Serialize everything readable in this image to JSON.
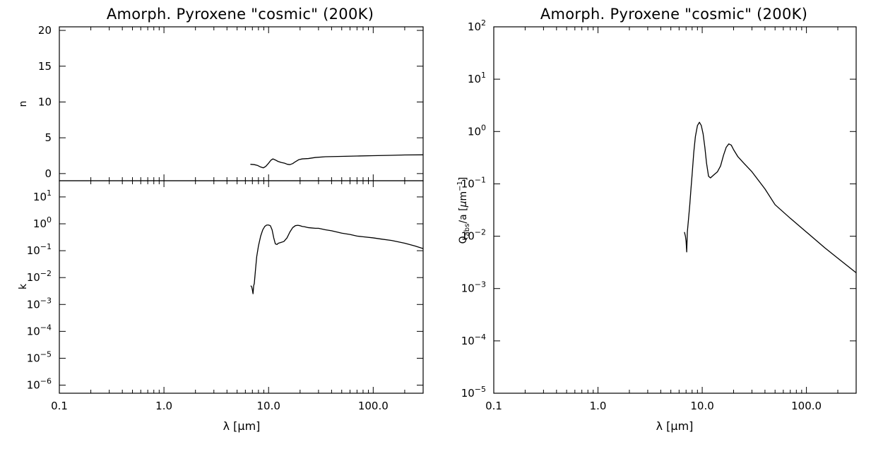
{
  "chart_data": [
    {
      "id": "n",
      "type": "line",
      "title": "Amorph. Pyroxene \"cosmic\" (200K)",
      "xlabel": "",
      "ylabel": "n",
      "xscale": "log",
      "yscale": "linear",
      "xlim": [
        0.1,
        300
      ],
      "ylim": [
        -1,
        20.5
      ],
      "xticks": [
        "0.1",
        "1.0",
        "10.0",
        "100.0"
      ],
      "yticks": [
        0,
        5,
        10,
        15,
        20
      ],
      "grid": false,
      "series": [
        {
          "x": [
            6.7,
            7.3,
            7.8,
            8.3,
            8.9,
            9.4,
            10.0,
            10.5,
            11.0,
            11.6,
            12.3,
            13.2,
            14.2,
            15.1,
            16.0,
            17.0,
            18.0,
            19.5,
            21,
            24,
            28,
            35,
            50,
            70,
            100,
            150,
            200,
            300
          ],
          "y": [
            1.3,
            1.25,
            1.15,
            0.95,
            0.8,
            1.0,
            1.45,
            1.85,
            2.05,
            1.9,
            1.7,
            1.55,
            1.45,
            1.3,
            1.25,
            1.4,
            1.65,
            1.95,
            2.05,
            2.1,
            2.25,
            2.35,
            2.4,
            2.45,
            2.5,
            2.55,
            2.6,
            2.62
          ]
        }
      ]
    },
    {
      "id": "k",
      "type": "line",
      "title": "",
      "xlabel": "λ [μm]",
      "ylabel": "k",
      "xscale": "log",
      "yscale": "log",
      "xlim": [
        0.1,
        300
      ],
      "ylim": [
        5e-07,
        40
      ],
      "xticks": [
        "0.1",
        "1.0",
        "10.0",
        "100.0"
      ],
      "yticks": [
        "10^1",
        "10^0",
        "10^-1",
        "10^-2",
        "10^-3",
        "10^-4",
        "10^-5",
        "10^-6"
      ],
      "grid": false,
      "series": [
        {
          "x": [
            6.75,
            6.9,
            7.0,
            7.1,
            7.2,
            7.3,
            7.5,
            7.7,
            8.0,
            8.4,
            8.8,
            9.2,
            9.6,
            10.0,
            10.4,
            10.8,
            11.2,
            11.6,
            12.0,
            12.4,
            13.0,
            14.0,
            15.0,
            16.0,
            17.0,
            18.0,
            19.0,
            20.0,
            21.0,
            22.0,
            24.0,
            26.0,
            28.0,
            30.0,
            35.0,
            40.0,
            50.0,
            60.0,
            70.0,
            80.0,
            100.0,
            120.0,
            150.0,
            200.0,
            250.0,
            300.0
          ],
          "y": [
            0.005,
            0.0045,
            0.0035,
            0.0025,
            0.005,
            0.006,
            0.02,
            0.06,
            0.15,
            0.35,
            0.6,
            0.8,
            0.9,
            0.9,
            0.85,
            0.6,
            0.3,
            0.18,
            0.17,
            0.19,
            0.2,
            0.22,
            0.3,
            0.5,
            0.72,
            0.85,
            0.88,
            0.85,
            0.8,
            0.78,
            0.72,
            0.7,
            0.68,
            0.68,
            0.6,
            0.55,
            0.45,
            0.4,
            0.35,
            0.33,
            0.3,
            0.27,
            0.24,
            0.19,
            0.15,
            0.12
          ]
        }
      ]
    },
    {
      "id": "qabs",
      "type": "line",
      "title": "Amorph. Pyroxene \"cosmic\" (200K)",
      "xlabel": "λ [μm]",
      "ylabel": "Q_abs/a [μm^-1]",
      "xscale": "log",
      "yscale": "log",
      "xlim": [
        0.1,
        300
      ],
      "ylim": [
        1e-05,
        100
      ],
      "xticks": [
        "0.1",
        "1.0",
        "10.0",
        "100.0"
      ],
      "yticks": [
        "10^2",
        "10^1",
        "10^0",
        "10^-1",
        "10^-2",
        "10^-3",
        "10^-4",
        "10^-5"
      ],
      "grid": false,
      "series": [
        {
          "x": [
            6.75,
            6.9,
            7.0,
            7.1,
            7.2,
            7.4,
            7.6,
            7.8,
            8.0,
            8.3,
            8.6,
            9.0,
            9.4,
            9.8,
            10.2,
            10.6,
            11.0,
            11.5,
            12.0,
            12.5,
            13.0,
            14.0,
            15.0,
            16.0,
            17.0,
            18.0,
            19.0,
            20.0,
            22.0,
            25.0,
            30.0,
            40.0,
            50.0,
            70.0,
            100.0,
            150.0,
            200.0,
            300.0
          ],
          "y": [
            0.012,
            0.01,
            0.008,
            0.005,
            0.012,
            0.022,
            0.04,
            0.08,
            0.15,
            0.4,
            0.8,
            1.3,
            1.5,
            1.3,
            0.9,
            0.5,
            0.25,
            0.14,
            0.13,
            0.14,
            0.15,
            0.17,
            0.22,
            0.35,
            0.5,
            0.58,
            0.55,
            0.45,
            0.33,
            0.25,
            0.17,
            0.08,
            0.04,
            0.022,
            0.012,
            0.006,
            0.0038,
            0.002
          ]
        }
      ]
    }
  ]
}
